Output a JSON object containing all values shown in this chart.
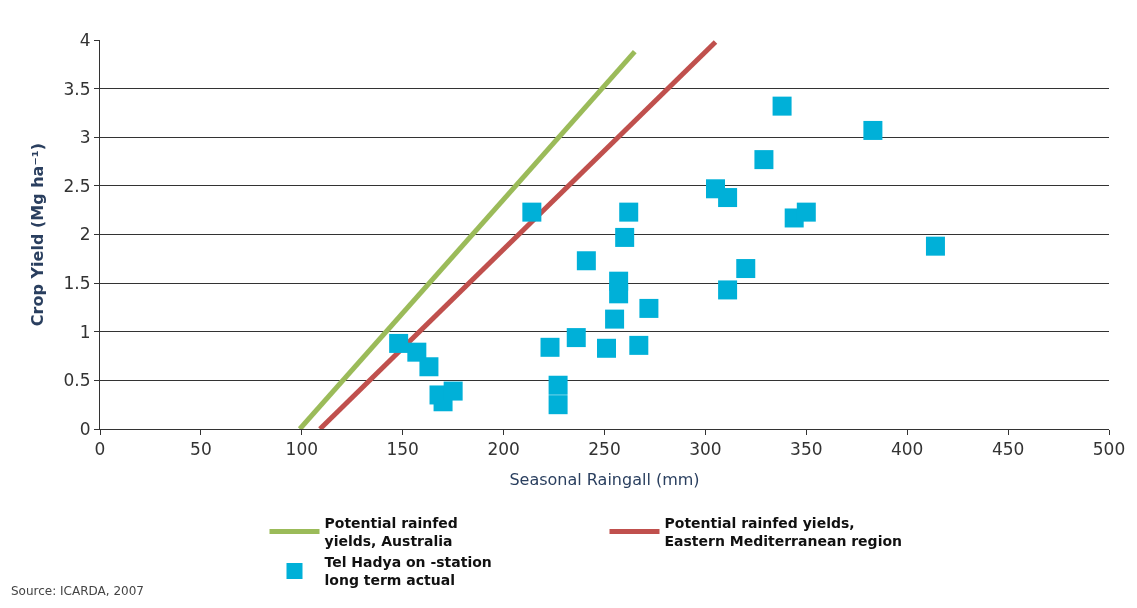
{
  "chart_data": {
    "type": "scatter",
    "xlabel": "Seasonal Raingall (mm)",
    "ylabel": "Crop Yield (Mg ha⁻¹)",
    "xlim": [
      0,
      500
    ],
    "xticks": [
      0,
      50,
      100,
      150,
      200,
      250,
      300,
      350,
      400,
      450,
      500
    ],
    "ylim": [
      0,
      4
    ],
    "yticks": [
      0,
      0.5,
      1,
      1.5,
      2,
      2.5,
      3,
      3.5,
      4
    ],
    "grid": "y",
    "legend": "bottom",
    "marker": "square",
    "series": [
      {
        "name": "Potential rainfed\nyields, Australia",
        "type": "line",
        "color": "#9bbb59",
        "x": [
          99,
          265
        ],
        "values": [
          0,
          3.88
        ],
        "marker": "none"
      },
      {
        "name": "Potential rainfed yields,\nEastern Mediterranean region",
        "type": "line",
        "color": "#c0504d",
        "x": [
          109,
          305
        ],
        "values": [
          0,
          3.98
        ],
        "marker": "none"
      },
      {
        "name": "Tel Hadya on -station\nlong term actual",
        "color": "#00b0d8",
        "x": [
          148,
          157,
          163,
          168,
          170,
          175,
          214,
          223,
          227,
          227,
          236,
          241,
          251,
          255,
          257,
          257,
          260,
          262,
          267,
          272,
          305,
          311,
          311,
          320,
          329,
          338,
          344,
          350,
          383,
          414
        ],
        "values": [
          0.88,
          0.79,
          0.64,
          0.35,
          0.28,
          0.39,
          2.23,
          0.84,
          0.45,
          0.25,
          0.94,
          1.73,
          0.83,
          1.13,
          1.52,
          1.39,
          1.97,
          2.23,
          0.86,
          1.24,
          2.47,
          2.38,
          1.43,
          1.65,
          2.77,
          3.32,
          2.17,
          2.23,
          3.07,
          1.88
        ]
      }
    ],
    "annotations": [
      "Source: ICARDA, 2007"
    ]
  }
}
